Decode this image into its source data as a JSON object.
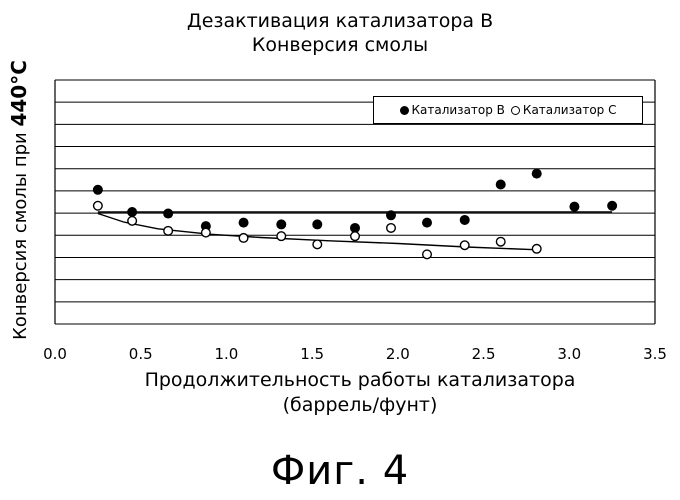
{
  "chart_data": {
    "type": "scatter",
    "title": "Дезактивация катализатора B",
    "subtitle": "Конверсия смолы",
    "xlabel_line1": "Продолжительность работы катализатора",
    "xlabel_line2": "(баррель/фунт)",
    "ylabel_text": "Конверсия смолы при ",
    "ylabel_bold": "440°C",
    "xlim": [
      0.0,
      3.5
    ],
    "x_ticks": [
      "0.0",
      "0.5",
      "1.0",
      "1.5",
      "2.0",
      "2.5",
      "3.0",
      "3.5"
    ],
    "ylim": [
      0,
      11
    ],
    "y_gridlines": 11,
    "grid": true,
    "legend": "top-right",
    "series": [
      {
        "name": "Катализатор B",
        "marker": "filled-circle",
        "x": [
          0.25,
          0.45,
          0.66,
          0.88,
          1.1,
          1.32,
          1.53,
          1.75,
          1.96,
          2.17,
          2.39,
          2.6,
          2.81,
          3.03,
          3.25
        ],
        "y": [
          6.05,
          5.05,
          4.98,
          4.41,
          4.57,
          4.49,
          4.49,
          4.33,
          4.9,
          4.57,
          4.69,
          6.29,
          6.78,
          5.29,
          5.33
        ],
        "trend_x": [
          0.25,
          3.25
        ],
        "trend_y": [
          5.05,
          5.05
        ]
      },
      {
        "name": "Катализатор C",
        "marker": "open-circle",
        "x": [
          0.25,
          0.45,
          0.66,
          0.88,
          1.1,
          1.32,
          1.53,
          1.75,
          1.96,
          2.17,
          2.39,
          2.6,
          2.81
        ],
        "y": [
          5.33,
          4.65,
          4.2,
          4.12,
          3.88,
          3.96,
          3.59,
          3.96,
          4.33,
          3.14,
          3.55,
          3.71,
          3.39
        ],
        "trend_x": [
          0.25,
          0.4,
          0.6,
          0.9,
          1.2,
          1.6,
          2.0,
          2.4,
          2.8
        ],
        "trend_y": [
          4.98,
          4.6,
          4.29,
          4.05,
          3.9,
          3.75,
          3.63,
          3.47,
          3.35
        ]
      }
    ]
  },
  "figure_label": "Фиг. 4"
}
